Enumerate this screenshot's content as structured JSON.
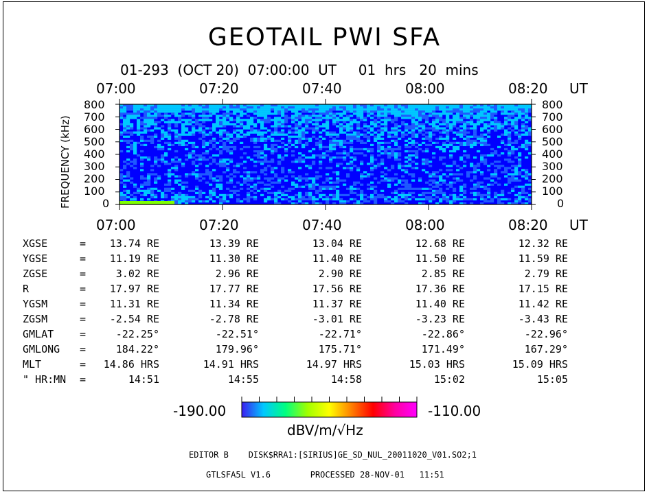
{
  "title": "GEOTAIL  PWI  SFA",
  "subtitle": "01-293  (OCT 20)  07:00:00  UT     01  hrs   20  mins",
  "chart_data": {
    "type": "heatmap",
    "ylabel": "FREQUENCY (kHz)",
    "x_ticks": [
      "07:00",
      "07:20",
      "07:40",
      "08:00",
      "08:20"
    ],
    "x_unit": "UT",
    "y_ticks": [
      "800",
      "700",
      "600",
      "500",
      "400",
      "300",
      "200",
      "100",
      "0"
    ],
    "ylim": [
      0,
      800
    ],
    "colorbar": {
      "min_label": "-190.00",
      "max_label": "-110.00",
      "unit": "dBV/m/√Hz",
      "colors": [
        "#3c1ef0",
        "#00c8ff",
        "#00ff80",
        "#a0ff00",
        "#ffff00",
        "#ff8000",
        "#ff0000",
        "#ff00a0",
        "#ff00ff"
      ]
    },
    "dominant_colors": [
      "#0000ff",
      "#1e5aff",
      "#00c8ff"
    ]
  },
  "orbit": {
    "rows": [
      {
        "label": "XGSE",
        "eq": "=",
        "values": [
          "13.74 RE",
          "13.39 RE",
          "13.04 RE",
          "12.68 RE",
          "12.32 RE"
        ]
      },
      {
        "label": "YGSE",
        "eq": "=",
        "values": [
          "11.19 RE",
          "11.30 RE",
          "11.40 RE",
          "11.50 RE",
          "11.59 RE"
        ]
      },
      {
        "label": "ZGSE",
        "eq": "=",
        "values": [
          "3.02 RE",
          "2.96 RE",
          "2.90 RE",
          "2.85 RE",
          "2.79 RE"
        ]
      },
      {
        "label": "R",
        "eq": "=",
        "values": [
          "17.97 RE",
          "17.77 RE",
          "17.56 RE",
          "17.36 RE",
          "17.15 RE"
        ]
      },
      {
        "label": "YGSM",
        "eq": "=",
        "values": [
          "11.31 RE",
          "11.34 RE",
          "11.37 RE",
          "11.40 RE",
          "11.42 RE"
        ]
      },
      {
        "label": "ZGSM",
        "eq": "=",
        "values": [
          "-2.54 RE",
          "-2.78 RE",
          "-3.01 RE",
          "-3.23 RE",
          "-3.43 RE"
        ]
      },
      {
        "label": "GMLAT",
        "eq": "=",
        "values": [
          "-22.25°",
          "-22.51°",
          "-22.71°",
          "-22.86°",
          "-22.96°"
        ]
      },
      {
        "label": "GMLONG",
        "eq": "=",
        "values": [
          "184.22°",
          "179.96°",
          "175.71°",
          "171.49°",
          "167.29°"
        ]
      },
      {
        "label": "MLT",
        "eq": "=",
        "values": [
          "14.86 HRS",
          "14.91 HRS",
          "14.97 HRS",
          "15.03 HRS",
          "15.09 HRS"
        ]
      },
      {
        "label": "\" HR:MN",
        "eq": "=",
        "values": [
          "14:51",
          "14:55",
          "14:58",
          "15:02",
          "15:05"
        ]
      }
    ]
  },
  "footer": {
    "line1": "EDITOR B    DISK$RRA1:[SIRIUS]GE_SD_NUL_20011020_V01.SO2;1",
    "line2": "GTLSFA5L V1.6        PROCESSED 28-NOV-01   11:51"
  }
}
